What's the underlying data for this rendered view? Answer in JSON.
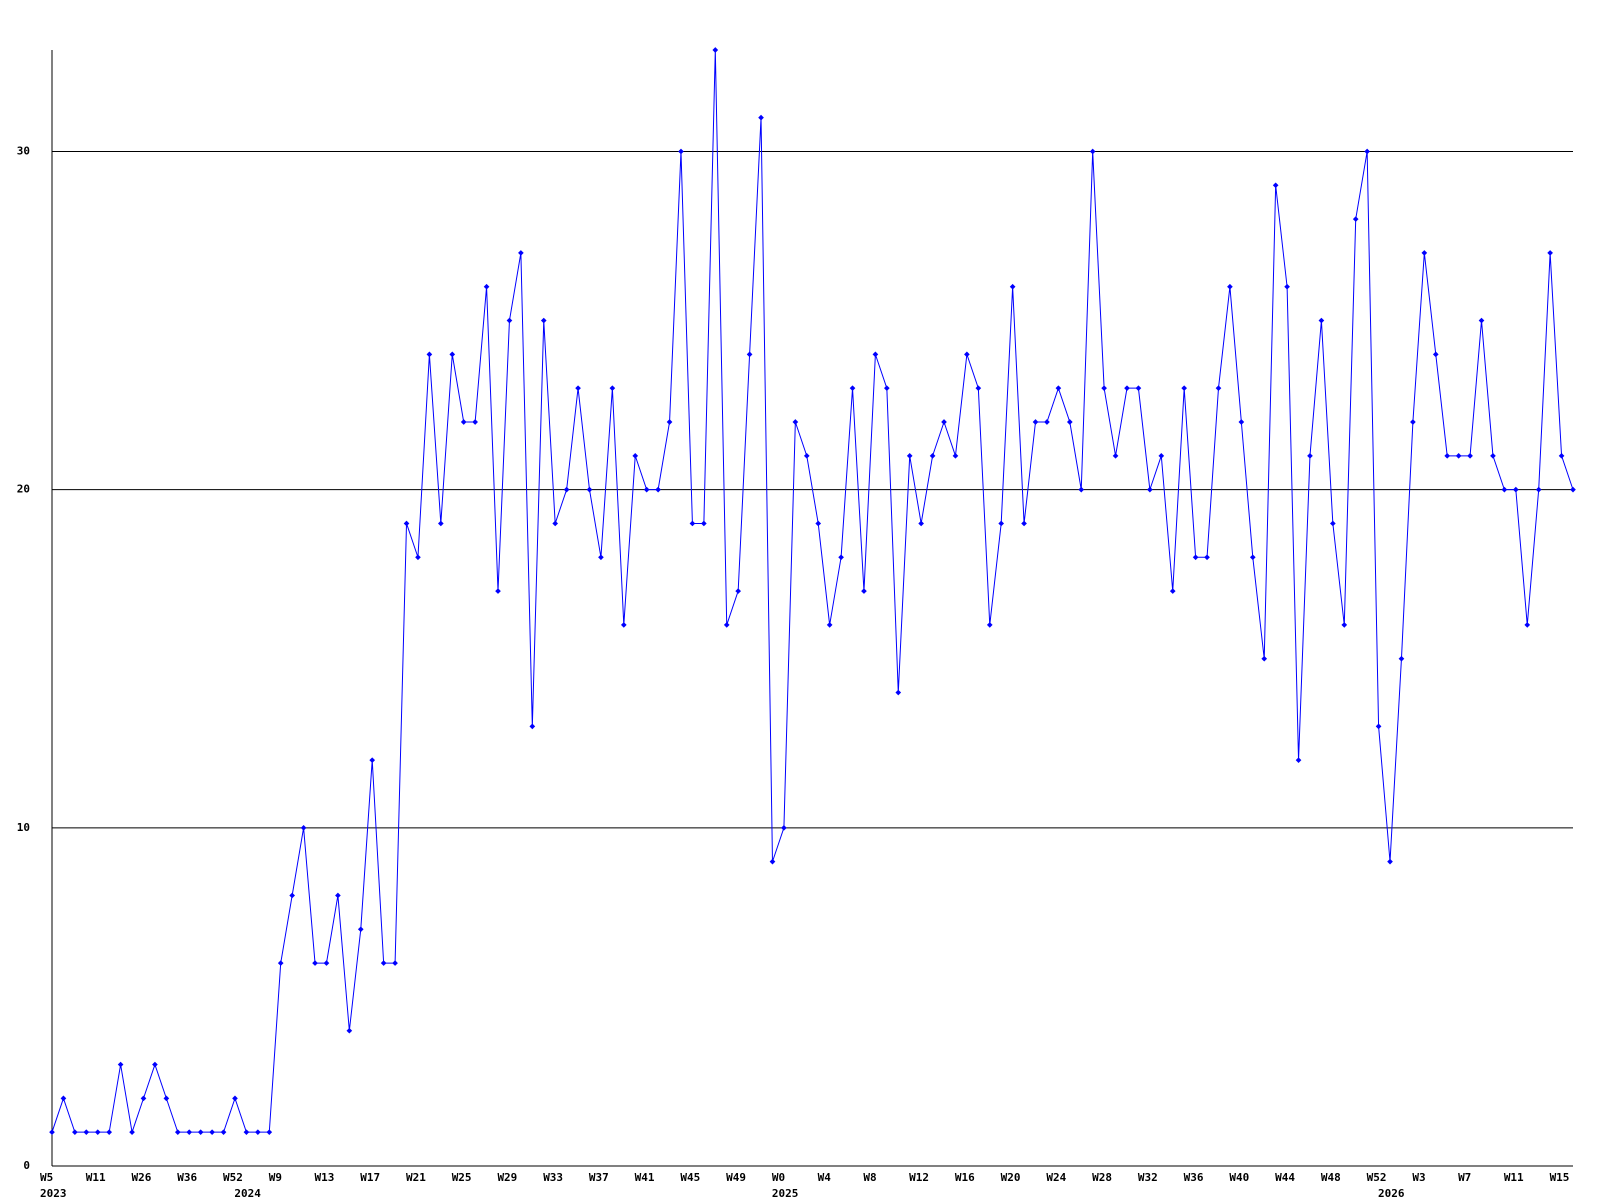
{
  "chart_data": {
    "type": "line",
    "categories": [
      "W5",
      null,
      null,
      null,
      "W11",
      null,
      null,
      null,
      "W26",
      null,
      null,
      null,
      "W36",
      null,
      null,
      null,
      "W52",
      null,
      null,
      null,
      "W9",
      null,
      null,
      null,
      "W13",
      null,
      null,
      null,
      "W17",
      null,
      null,
      null,
      "W21",
      null,
      null,
      null,
      "W25",
      null,
      null,
      null,
      "W29",
      null,
      null,
      null,
      "W33",
      null,
      null,
      null,
      "W37",
      null,
      null,
      null,
      "W41",
      null,
      null,
      null,
      "W45",
      null,
      null,
      null,
      "W49",
      null,
      null,
      null,
      "W0",
      null,
      null,
      null,
      "W4",
      null,
      null,
      null,
      "W8",
      null,
      null,
      null,
      "W12",
      null,
      null,
      null,
      "W16",
      null,
      null,
      null,
      "W20",
      null,
      null,
      null,
      "W24",
      null,
      null,
      null,
      "W28",
      null,
      null,
      null,
      "W32",
      null,
      null,
      null,
      "W36",
      null,
      null,
      null,
      "W40",
      null,
      null,
      null,
      "W44",
      null,
      null,
      null,
      "W48",
      null,
      null,
      null,
      "W52",
      null,
      null,
      null,
      "W3",
      null,
      null,
      null,
      "W7",
      null,
      null,
      null,
      "W11",
      null,
      null,
      null,
      "W15",
      null
    ],
    "year_labels": [
      "2023",
      null,
      null,
      null,
      null,
      null,
      null,
      null,
      null,
      null,
      null,
      null,
      null,
      null,
      null,
      null,
      null,
      "2024",
      null,
      null,
      null,
      null,
      null,
      null,
      null,
      null,
      null,
      null,
      null,
      null,
      null,
      null,
      null,
      null,
      null,
      null,
      null,
      null,
      null,
      null,
      null,
      null,
      null,
      null,
      null,
      null,
      null,
      null,
      null,
      null,
      null,
      null,
      null,
      null,
      null,
      null,
      null,
      null,
      null,
      null,
      null,
      null,
      null,
      null,
      "2025",
      null,
      null,
      null,
      null,
      null,
      null,
      null,
      null,
      null,
      null,
      null,
      null,
      null,
      null,
      null,
      null,
      null,
      null,
      null,
      null,
      null,
      null,
      null,
      null,
      null,
      null,
      null,
      null,
      null,
      null,
      null,
      null,
      null,
      null,
      null,
      null,
      null,
      null,
      null,
      null,
      null,
      null,
      null,
      null,
      null,
      null,
      null,
      null,
      null,
      null,
      null,
      null,
      "2026",
      null,
      null,
      null,
      null,
      null,
      null,
      null,
      null,
      null,
      null,
      null,
      null,
      null,
      null,
      null,
      null
    ],
    "series": [
      {
        "name": null,
        "color": "#0000ff",
        "values": [
          1,
          2,
          1,
          1,
          1,
          1,
          3,
          1,
          2,
          3,
          2,
          1,
          1,
          1,
          1,
          1,
          2,
          1,
          1,
          1,
          6,
          8,
          10,
          6,
          6,
          8,
          4,
          7,
          12,
          6,
          6,
          19,
          18,
          24,
          19,
          24,
          22,
          22,
          26,
          17,
          25,
          27,
          13,
          25,
          19,
          20,
          23,
          20,
          18,
          23,
          16,
          21,
          20,
          20,
          22,
          30,
          19,
          19,
          33,
          16,
          17,
          24,
          31,
          9,
          10,
          22,
          21,
          19,
          16,
          18,
          23,
          17,
          24,
          23,
          14,
          21,
          19,
          21,
          22,
          21,
          24,
          23,
          16,
          19,
          26,
          19,
          22,
          22,
          23,
          22,
          20,
          30,
          23,
          21,
          23,
          23,
          20,
          21,
          17,
          23,
          18,
          18,
          23,
          26,
          22,
          18,
          15,
          29,
          26,
          12,
          21,
          25,
          19,
          16,
          28,
          30,
          13,
          9,
          15,
          22,
          27,
          24,
          21,
          21,
          21,
          25,
          21,
          20,
          20,
          16,
          20,
          27,
          21,
          20
        ]
      }
    ],
    "ylim": [
      0,
      33
    ],
    "yticks": [
      0,
      10,
      20,
      30
    ],
    "grid": true
  }
}
